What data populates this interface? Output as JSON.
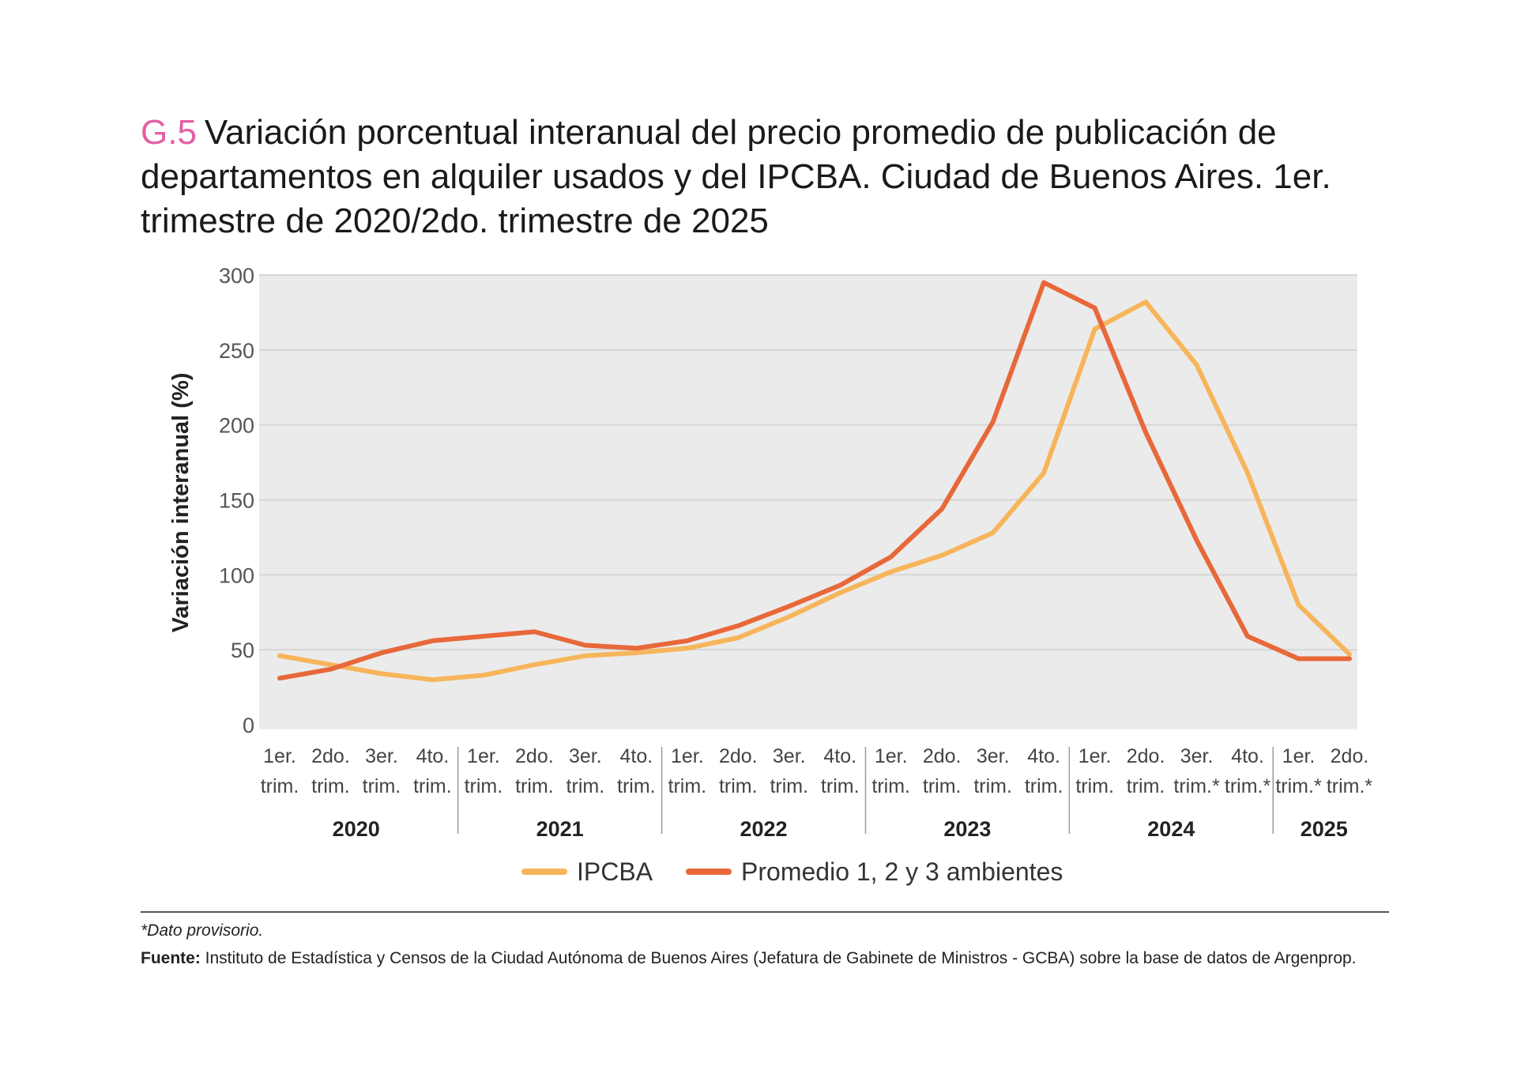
{
  "title": {
    "code": "G.5",
    "text": "Variación porcentual interanual del precio promedio de publicación de departamentos en alquiler usados y del IPCBA. Ciudad de Buenos Aires. 1er. trimestre de 2020/2do. trimestre de 2025"
  },
  "chart_data": {
    "type": "line",
    "ylabel": "Variación interanual (%)",
    "ylim": [
      0,
      300
    ],
    "yticks": [
      0,
      50,
      100,
      150,
      200,
      250,
      300
    ],
    "grid": true,
    "legend_position": "bottom",
    "categories": [
      [
        "1er.",
        "trim."
      ],
      [
        "2do.",
        "trim."
      ],
      [
        "3er.",
        "trim."
      ],
      [
        "4to.",
        "trim."
      ],
      [
        "1er.",
        "trim."
      ],
      [
        "2do.",
        "trim."
      ],
      [
        "3er.",
        "trim."
      ],
      [
        "4to.",
        "trim."
      ],
      [
        "1er.",
        "trim."
      ],
      [
        "2do.",
        "trim."
      ],
      [
        "3er.",
        "trim."
      ],
      [
        "4to.",
        "trim."
      ],
      [
        "1er.",
        "trim."
      ],
      [
        "2do.",
        "trim."
      ],
      [
        "3er.",
        "trim."
      ],
      [
        "4to.",
        "trim."
      ],
      [
        "1er.",
        "trim."
      ],
      [
        "2do.",
        "trim."
      ],
      [
        "3er.",
        "trim.*"
      ],
      [
        "4to.",
        "trim.*"
      ],
      [
        "1er.",
        "trim.*"
      ],
      [
        "2do.",
        "trim.*"
      ]
    ],
    "years": [
      {
        "label": "2020",
        "count": 4
      },
      {
        "label": "2021",
        "count": 4
      },
      {
        "label": "2022",
        "count": 4
      },
      {
        "label": "2023",
        "count": 4
      },
      {
        "label": "2024",
        "count": 4
      },
      {
        "label": "2025",
        "count": 2
      }
    ],
    "series": [
      {
        "name": "IPCBA",
        "color": "#f7b55b",
        "values": [
          46,
          40,
          34,
          30,
          33,
          40,
          46,
          48,
          51,
          58,
          72,
          88,
          102,
          113,
          128,
          168,
          264,
          282,
          240,
          168,
          80,
          47
        ]
      },
      {
        "name": "Promedio 1, 2 y 3 ambientes",
        "color": "#e8683a",
        "values": [
          31,
          37,
          48,
          56,
          59,
          62,
          53,
          51,
          56,
          66,
          79,
          93,
          112,
          144,
          202,
          295,
          278,
          195,
          123,
          59,
          44,
          44
        ]
      }
    ]
  },
  "notes": {
    "provisional": "*Dato provisorio.",
    "source_label": "Fuente:",
    "source_text": "Instituto de Estadística y Censos de la Ciudad Autónoma de Buenos Aires (Jefatura de Gabinete de Ministros - GCBA) sobre la base de datos de Argenprop."
  }
}
